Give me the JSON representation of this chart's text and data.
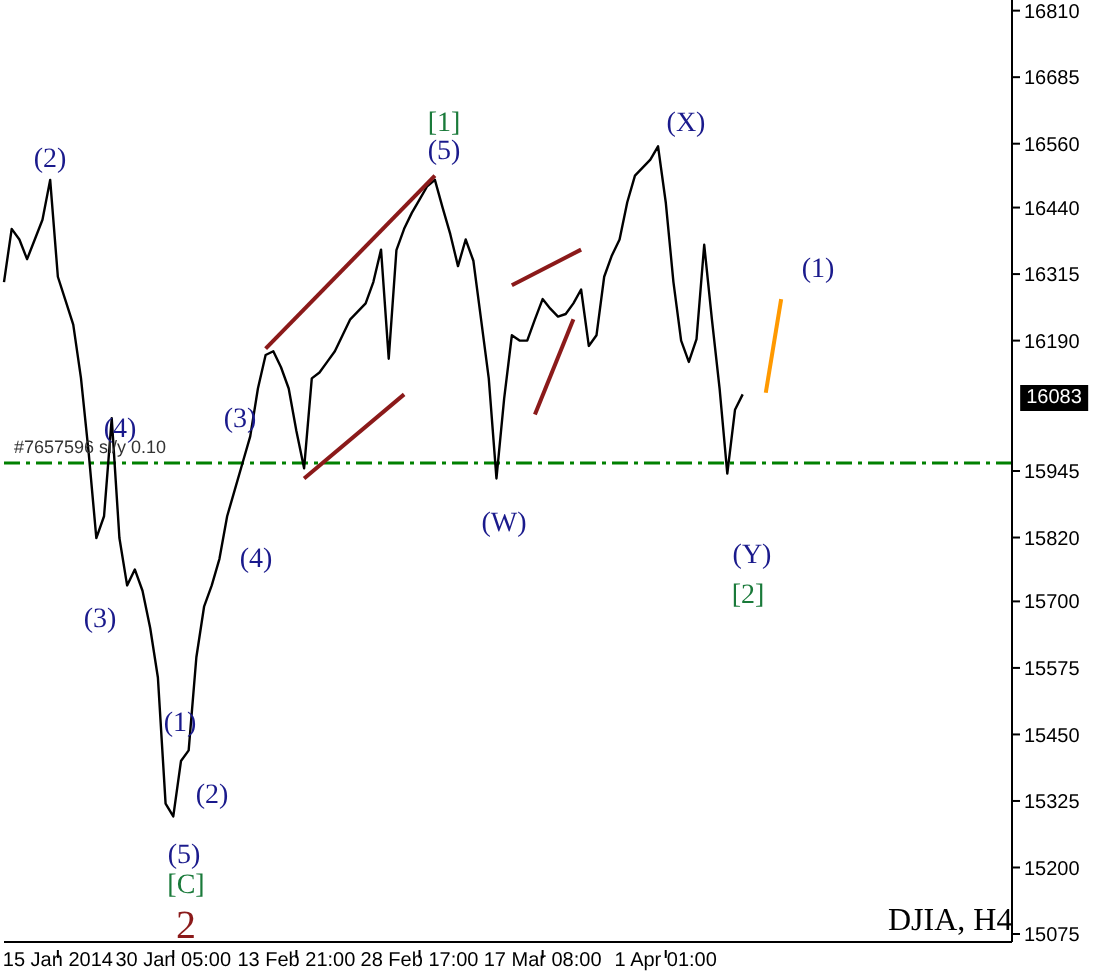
{
  "chart_data": {
    "type": "line",
    "title": "DJIA, H4",
    "categories": [
      null,
      null,
      null,
      null,
      null,
      null,
      null,
      "15 Jan 2014",
      null,
      null,
      null,
      null,
      null,
      null,
      null,
      null,
      null,
      null,
      null,
      null,
      null,
      null,
      "30 Jan 05:00",
      null,
      null,
      null,
      null,
      null,
      null,
      null,
      null,
      null,
      null,
      null,
      null,
      null,
      null,
      null,
      "13 Feb 21:00",
      null,
      null,
      null,
      null,
      null,
      null,
      null,
      null,
      null,
      null,
      null,
      null,
      null,
      null,
      null,
      "28 Feb 17:00",
      null,
      null,
      null,
      null,
      null,
      null,
      null,
      null,
      null,
      null,
      null,
      null,
      null,
      null,
      null,
      "17 Mar 08:00",
      null,
      null,
      null,
      null,
      null,
      null,
      null,
      null,
      null,
      null,
      null,
      null,
      null,
      null,
      null,
      "1 Apr 01:00",
      null,
      null,
      null,
      null,
      null,
      null,
      null,
      null,
      null,
      null,
      null,
      null,
      null,
      null,
      null,
      null,
      null,
      null,
      null,
      null,
      null,
      null,
      null,
      null,
      null,
      null,
      null,
      null,
      null,
      null,
      null,
      null,
      null,
      null,
      null,
      null,
      null,
      null,
      null,
      null,
      null,
      null,
      null,
      null,
      null
    ],
    "ylim": [
      15060,
      16830
    ],
    "yticks": [
      15075,
      15200,
      15325,
      15450,
      15575,
      15700,
      15820,
      15945,
      16190,
      16315,
      16440,
      16560,
      16685,
      16810
    ],
    "marker": "none",
    "series": [
      {
        "color": "#000000",
        "values": [
          16300,
          16400,
          16380,
          16343,
          16380,
          16417,
          16492,
          16310,
          16265,
          16220,
          16120,
          15980,
          15819,
          15860,
          16044,
          15819,
          15730,
          15760,
          15720,
          15650,
          15557,
          15320,
          15296,
          15400,
          15420,
          15595,
          15690,
          15730,
          15780,
          15860,
          15910,
          15960,
          16010,
          16100,
          16163,
          16170,
          16140,
          16100,
          16020,
          15950,
          16119,
          16130,
          16150,
          16170,
          16200,
          16230,
          16245,
          16260,
          16300,
          16361,
          16156,
          16360,
          16400,
          16430,
          16455,
          16480,
          16492,
          16440,
          16390,
          16330,
          16380,
          16340,
          16230,
          16119,
          15931,
          16081,
          16200,
          16190,
          16190,
          16230,
          16268,
          16250,
          16235,
          16240,
          16260,
          16286,
          16180,
          16200,
          16310,
          16350,
          16380,
          16450,
          16500,
          16515,
          16530,
          16555,
          16450,
          16300,
          16190,
          16150,
          16193,
          16370,
          16230,
          16100,
          15940,
          16060,
          16089,
          null,
          null,
          null,
          null,
          null,
          null,
          null,
          null,
          null,
          null,
          null,
          null,
          null,
          null,
          null,
          null,
          null,
          null,
          null,
          null,
          null,
          null,
          null,
          null,
          null,
          null,
          null,
          null,
          null,
          null,
          null,
          null,
          null,
          null,
          null
        ]
      },
      {
        "color": "#8b1a1a",
        "values": [
          null,
          null,
          null,
          null,
          null,
          null,
          null,
          null,
          null,
          null,
          null,
          null,
          null,
          null,
          null,
          null,
          null,
          null,
          null,
          null,
          null,
          null,
          null,
          null,
          null,
          null,
          null,
          null,
          null,
          null,
          null,
          null,
          null,
          null,
          16175,
          null,
          null,
          null,
          null,
          null,
          null,
          null,
          null,
          null,
          null,
          null,
          null,
          null,
          null,
          null,
          null,
          null,
          null,
          null,
          null,
          null,
          16500,
          null,
          null,
          null,
          null,
          null,
          null,
          null,
          null,
          null,
          null,
          null,
          null,
          null,
          null,
          null,
          null,
          null,
          null,
          null,
          null,
          null,
          null,
          null,
          null,
          null,
          null,
          null,
          null,
          null,
          null,
          null,
          null,
          null,
          null,
          null,
          null,
          null,
          null,
          null,
          null,
          null,
          null,
          null,
          null,
          null,
          null,
          null,
          null,
          null,
          null,
          null,
          null,
          null,
          null,
          null,
          null,
          null,
          null,
          null,
          null,
          null,
          null,
          null,
          null,
          null,
          null,
          null,
          null,
          null,
          null,
          null,
          null,
          null,
          null,
          null
        ]
      },
      {
        "color": "#8b1a1a",
        "values": [
          null,
          null,
          null,
          null,
          null,
          null,
          null,
          null,
          null,
          null,
          null,
          null,
          null,
          null,
          null,
          null,
          null,
          null,
          null,
          null,
          null,
          null,
          null,
          null,
          null,
          null,
          null,
          null,
          null,
          null,
          null,
          null,
          null,
          null,
          null,
          null,
          null,
          null,
          null,
          15931,
          null,
          null,
          null,
          null,
          null,
          null,
          null,
          null,
          null,
          null,
          null,
          null,
          16089,
          null,
          null,
          null,
          null,
          null,
          null,
          null,
          null,
          null,
          null,
          null,
          null,
          null,
          null,
          null,
          null,
          null,
          null,
          null,
          null,
          null,
          null,
          null,
          null,
          null,
          null,
          null,
          null,
          null,
          null,
          null,
          null,
          null,
          null,
          null,
          null,
          null,
          null,
          null,
          null,
          null,
          null,
          null,
          null,
          null,
          null,
          null,
          null,
          null,
          null,
          null,
          null,
          null,
          null,
          null,
          null,
          null,
          null,
          null,
          null,
          null,
          null,
          null,
          null,
          null,
          null,
          null,
          null,
          null,
          null,
          null,
          null,
          null,
          null,
          null,
          null,
          null,
          null,
          null
        ]
      },
      {
        "color": "#8b1a1a",
        "values": [
          null,
          null,
          null,
          null,
          null,
          null,
          null,
          null,
          null,
          null,
          null,
          null,
          null,
          null,
          null,
          null,
          null,
          null,
          null,
          null,
          null,
          null,
          null,
          null,
          null,
          null,
          null,
          null,
          null,
          null,
          null,
          null,
          null,
          null,
          null,
          null,
          null,
          null,
          null,
          null,
          null,
          null,
          null,
          null,
          null,
          null,
          null,
          null,
          null,
          null,
          null,
          null,
          null,
          null,
          null,
          null,
          null,
          null,
          null,
          null,
          null,
          null,
          null,
          null,
          null,
          null,
          16294,
          null,
          null,
          null,
          null,
          null,
          null,
          null,
          null,
          16361,
          null,
          null,
          null,
          null,
          null,
          null,
          null,
          null,
          null,
          null,
          null,
          null,
          null,
          null,
          null,
          null,
          null,
          null,
          null,
          null,
          null,
          null,
          null,
          null,
          null,
          null,
          null,
          null,
          null,
          null,
          null,
          null,
          null,
          null,
          null,
          null,
          null,
          null,
          null,
          null,
          null,
          null,
          null,
          null,
          null,
          null,
          null,
          null,
          null,
          null,
          null,
          null,
          null,
          null,
          null,
          null
        ]
      },
      {
        "color": "#8b1a1a",
        "values": [
          null,
          null,
          null,
          null,
          null,
          null,
          null,
          null,
          null,
          null,
          null,
          null,
          null,
          null,
          null,
          null,
          null,
          null,
          null,
          null,
          null,
          null,
          null,
          null,
          null,
          null,
          null,
          null,
          null,
          null,
          null,
          null,
          null,
          null,
          null,
          null,
          null,
          null,
          null,
          null,
          null,
          null,
          null,
          null,
          null,
          null,
          null,
          null,
          null,
          null,
          null,
          null,
          null,
          null,
          null,
          null,
          null,
          null,
          null,
          null,
          null,
          null,
          null,
          null,
          null,
          null,
          null,
          null,
          null,
          16051,
          null,
          null,
          null,
          null,
          16230,
          null,
          null,
          null,
          null,
          null,
          null,
          null,
          null,
          null,
          null,
          null,
          null,
          null,
          null,
          null,
          null,
          null,
          null,
          null,
          null,
          null,
          null,
          null,
          null,
          null,
          null,
          null,
          null,
          null,
          null,
          null,
          null,
          null,
          null,
          null,
          null,
          null,
          null,
          null,
          null,
          null,
          null,
          null,
          null,
          null,
          null,
          null,
          null,
          null,
          null,
          null,
          null,
          null,
          null,
          null,
          null,
          null
        ]
      },
      {
        "color": "#ff9900",
        "values": [
          null,
          null,
          null,
          null,
          null,
          null,
          null,
          null,
          null,
          null,
          null,
          null,
          null,
          null,
          null,
          null,
          null,
          null,
          null,
          null,
          null,
          null,
          null,
          null,
          null,
          null,
          null,
          null,
          null,
          null,
          null,
          null,
          null,
          null,
          null,
          null,
          null,
          null,
          null,
          null,
          null,
          null,
          null,
          null,
          null,
          null,
          null,
          null,
          null,
          null,
          null,
          null,
          null,
          null,
          null,
          null,
          null,
          null,
          null,
          null,
          null,
          null,
          null,
          null,
          null,
          null,
          null,
          null,
          null,
          null,
          null,
          null,
          null,
          null,
          null,
          null,
          null,
          null,
          null,
          null,
          null,
          null,
          null,
          null,
          null,
          null,
          null,
          null,
          null,
          null,
          null,
          null,
          null,
          null,
          null,
          null,
          null,
          null,
          null,
          16092,
          null,
          16268,
          null,
          null,
          null,
          null,
          null,
          null,
          null,
          null,
          null,
          null,
          null,
          null,
          null,
          null,
          null,
          null,
          null,
          null,
          null,
          null,
          null,
          null,
          null,
          null,
          null,
          null,
          null,
          null,
          null,
          null
        ]
      }
    ],
    "ref_lines": [
      {
        "axis": "y",
        "value": 15960,
        "label": "#7657596 sl/y 0.10",
        "color": "#008000",
        "line_style": "dashed"
      }
    ],
    "annotations": [
      "(2)",
      "(4)",
      "(3)",
      "(3)",
      "(4)",
      "(1)",
      "(2)",
      "(5)",
      "[C]",
      "2",
      {
        "text": "[1]",
        "y": 16500
      },
      {
        "text": "(5)",
        "y": 16500
      },
      "(W)",
      "(X)",
      "(Y)",
      "[2]",
      "(1)",
      "16083"
    ]
  }
}
